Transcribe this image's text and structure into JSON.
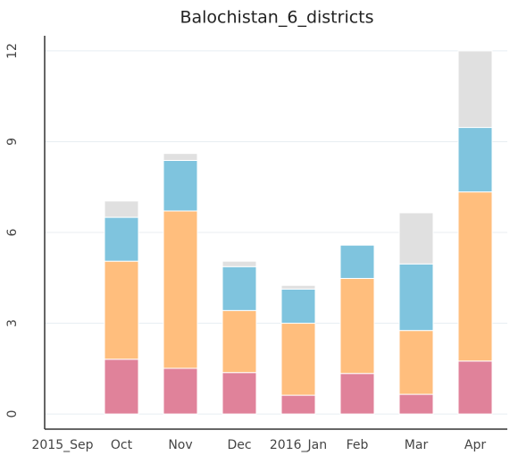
{
  "chart_data": {
    "type": "stacked_bar",
    "title": "Balochistan_6_districts",
    "categories": [
      "2015_Sep",
      "Oct",
      "Nov",
      "Dec",
      "2016_Jan",
      "Feb",
      "Mar",
      "Apr"
    ],
    "series": [
      {
        "color": "#e0829a",
        "values": [
          null,
          1.81,
          1.51,
          1.37,
          0.62,
          1.34,
          0.65,
          1.75
        ]
      },
      {
        "color": "#ffbe7d",
        "values": [
          null,
          3.24,
          5.2,
          2.05,
          2.38,
          3.14,
          2.11,
          5.59
        ]
      },
      {
        "color": "#7fc4de",
        "values": [
          null,
          1.45,
          1.67,
          1.45,
          1.13,
          1.1,
          2.2,
          2.13
        ]
      },
      {
        "color": "#e0e0e0",
        "values": [
          null,
          0.54,
          0.23,
          0.18,
          0.12,
          0,
          1.69,
          2.53
        ]
      }
    ],
    "ylim": [
      -0.5,
      12.5
    ],
    "yticks": [
      0,
      3,
      6,
      9,
      12
    ],
    "grid": true
  }
}
